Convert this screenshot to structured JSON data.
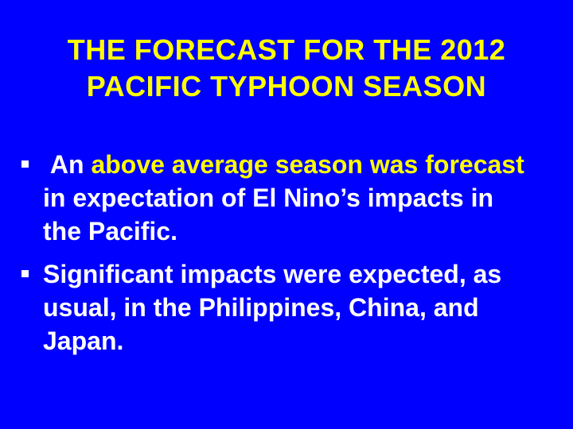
{
  "slide": {
    "title_lines": [
      "THE FORECAST FOR THE 2012",
      "PACIFIC TYPHOON SEASON"
    ],
    "bullets": [
      {
        "pre": " An ",
        "highlight": "above average season was forecast",
        "post": "  in expectation of El Nino’s impacts in the Pacific."
      },
      {
        "text": "Significant impacts were expected, as usual, in the Philippines, China, and Japan."
      }
    ]
  },
  "colors": {
    "background": "#0000ff",
    "title": "#ffff00",
    "body_text": "#ffffff",
    "highlight": "#ffff00"
  }
}
